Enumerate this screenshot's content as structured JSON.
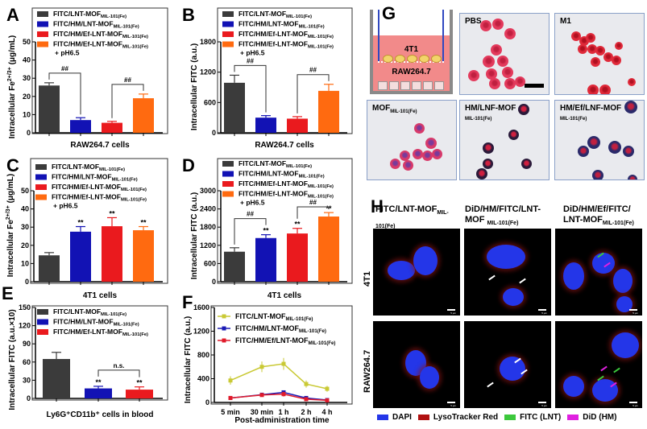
{
  "colors": {
    "black": "#3b3b3b",
    "blue": "#1212b4",
    "red": "#ea1a1e",
    "orange": "#ff6a10",
    "yellow": "#c9c934"
  },
  "legend4": [
    {
      "main": "FITC/LNT-MOF",
      "sub": "MIL-101(Fe)",
      "extra": ""
    },
    {
      "main": "FITC/HM/LNT-MOF",
      "sub": "MIL-101(Fe)",
      "extra": ""
    },
    {
      "main": "FITC/HM/Ef-LNT-MOF",
      "sub": "MIL-101(Fe)",
      "extra": ""
    },
    {
      "main": "FITC/HM/Ef-LNT-MOF",
      "sub": "MIL-101(Fe)",
      "extra": "+ pH6.5"
    }
  ],
  "chart_data": [
    {
      "panel": "A",
      "type": "bar",
      "xlabel": "RAW264.7 cells",
      "ylabel": "Intracellular Fe",
      "ylabel_sup": "2+/3+",
      "ylabel_unit": " (μg/mL)",
      "yticks": [
        0,
        10,
        20,
        30,
        40,
        50
      ],
      "values": [
        26,
        7,
        5.5,
        19
      ],
      "errors": [
        1.5,
        1.3,
        0.8,
        2.3
      ],
      "stars": [
        "",
        "",
        "",
        ""
      ],
      "brackets": [
        {
          "from": 0,
          "to": 1,
          "label": "##"
        },
        {
          "from": 2,
          "to": 3,
          "label": "##"
        }
      ]
    },
    {
      "panel": "B",
      "type": "bar",
      "xlabel": "RAW264.7 cells",
      "ylabel": "Intracellular FITC (a.u.)",
      "yticks": [
        0,
        600,
        1200,
        1800
      ],
      "values": [
        990,
        300,
        280,
        830
      ],
      "errors": [
        150,
        40,
        40,
        130
      ],
      "stars": [
        "",
        "",
        "",
        ""
      ],
      "brackets": [
        {
          "from": 0,
          "to": 1,
          "label": "##"
        },
        {
          "from": 2,
          "to": 3,
          "label": "##"
        }
      ]
    },
    {
      "panel": "C",
      "type": "bar",
      "xlabel": "4T1 cells",
      "ylabel": "Intracellular Fe",
      "ylabel_sup": "2+/3+",
      "ylabel_unit": " (μg/mL)",
      "yticks": [
        0,
        10,
        20,
        30,
        40,
        50
      ],
      "values": [
        14.5,
        27.5,
        30.5,
        28.3
      ],
      "errors": [
        1.5,
        2.8,
        4.7,
        2
      ],
      "stars": [
        "",
        "**",
        "**",
        "**"
      ],
      "brackets": []
    },
    {
      "panel": "D",
      "type": "bar",
      "xlabel": "4T1 cells",
      "ylabel": "Intracellular FITC (a.u.)",
      "yticks": [
        0,
        600,
        1200,
        1800,
        2400,
        3000
      ],
      "values": [
        990,
        1440,
        1590,
        2150
      ],
      "errors": [
        130,
        110,
        170,
        130
      ],
      "stars": [
        "",
        "**",
        "**",
        "**"
      ],
      "brackets": [
        {
          "from": 0,
          "to": 1,
          "label": "##"
        },
        {
          "from": 2,
          "to": 3,
          "label": "##"
        }
      ]
    },
    {
      "panel": "E",
      "type": "bar",
      "xlabel": "Ly6G⁺CD11b⁺ cells in blood",
      "ylabel": "Intracellular FITC (a.u.×10)",
      "yticks": [
        0,
        30,
        60,
        90,
        120,
        150
      ],
      "values": [
        65,
        16.5,
        14.5
      ],
      "errors": [
        11,
        3.5,
        4.5
      ],
      "stars": [
        "",
        "**",
        "**"
      ],
      "brackets": [
        {
          "from": 1,
          "to": 2,
          "label": "n.s."
        }
      ]
    },
    {
      "panel": "F",
      "type": "line",
      "xlabel": "Post-administration time",
      "ylabel": "Intracellular FITC (a.u.)",
      "yticks": [
        0,
        400,
        800,
        1200,
        1600
      ],
      "categories": [
        "5 min",
        "30 min",
        "1 h",
        "2 h",
        "4 h"
      ],
      "series": [
        {
          "name": "FITC/LNT-MOF",
          "sub": "MIL-101(Fe)",
          "color": "#c9c934",
          "values": [
            370,
            600,
            650,
            310,
            230
          ],
          "errors": [
            70,
            90,
            100,
            60,
            50
          ]
        },
        {
          "name": "FITC/HM/LNT-MOF",
          "sub": "MIL-101(Fe)",
          "color": "#1a1ab4",
          "values": [
            75,
            130,
            170,
            75,
            40
          ],
          "errors": [
            15,
            20,
            25,
            15,
            10
          ]
        },
        {
          "name": "FITC/HM/Ef/LNT-MOF",
          "sub": "MIL-101(Fe)",
          "color": "#e01a2a",
          "values": [
            75,
            125,
            140,
            55,
            35
          ],
          "errors": [
            15,
            20,
            40,
            15,
            10
          ]
        }
      ]
    }
  ],
  "panelG": {
    "label": "G",
    "schematic": {
      "top": "4T1",
      "bottom": "RAW264.7"
    },
    "images": [
      {
        "title": "PBS",
        "sub": ""
      },
      {
        "title": "M1",
        "sub": ""
      },
      {
        "title": "MOF",
        "sub": "MIL-101(Fe)",
        "subInline": true
      },
      {
        "title": "HM/LNF-MOF",
        "sub": "MIL-101(Fe)"
      },
      {
        "title": "HM/Ef/LNF-MOF",
        "sub": "MIL-101(Fe)"
      }
    ]
  },
  "panelH": {
    "label": "H",
    "columns": [
      {
        "main": "FITC/LNT-MOF",
        "sub": "MIL-",
        "line2": "101(Fe)"
      },
      {
        "main": "DiD/HM/FITC/LNT-",
        "sub": "",
        "line2": "MOF",
        "line2sub": "MIL-101(Fe)"
      },
      {
        "main": "DiD/HM/Ef/FITC/",
        "sub": "",
        "line2": "LNT-MOF",
        "line2sub": "MIL-101(Fe)"
      }
    ],
    "rows": [
      "4T1",
      "RAW264.7"
    ],
    "scalebar": "5 μm",
    "legend": [
      {
        "label": "DAPI",
        "color": "#2436e8"
      },
      {
        "label": "LysoTracker Red",
        "color": "#b01010"
      },
      {
        "label": "FITC (LNT)",
        "color": "#3cc83c"
      },
      {
        "label": "DiD (HM)",
        "color": "#e020e0"
      }
    ]
  }
}
